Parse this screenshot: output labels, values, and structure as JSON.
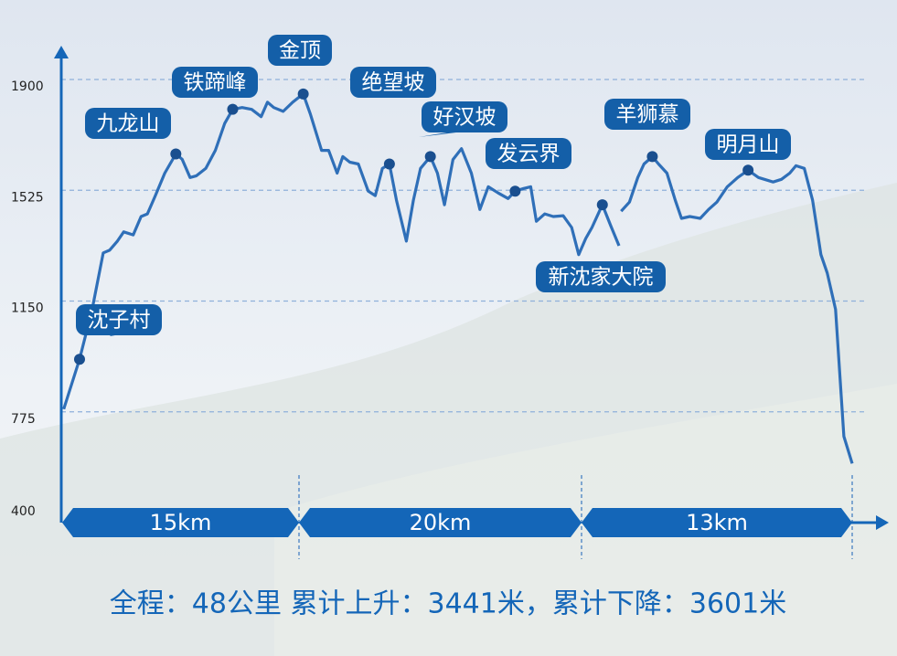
{
  "chart_data": {
    "type": "line",
    "color": "#2f6fb8",
    "ylim": [
      400,
      1900
    ],
    "yticks": [
      400,
      775,
      1150,
      1525,
      1900
    ],
    "grid": true,
    "x": [
      0.1,
      1.1,
      1.9,
      2.6,
      3.0,
      3.5,
      3.9,
      4.5,
      5.0,
      5.4,
      5.9,
      6.5,
      7.2,
      7.6,
      8.1,
      8.5,
      9.1,
      9.7,
      10.3,
      10.8,
      11.4,
      12.0,
      12.6,
      13.0,
      13.4,
      14.0,
      14.6,
      15.3,
      15.8,
      16.6,
      17.1,
      17.7,
      18.1,
      18.6,
      19.2,
      19.9,
      20.4,
      20.9,
      21.4,
      21.9,
      22.6,
      23.1,
      23.6,
      24.3,
      24.8,
      25.3,
      25.9,
      26.5,
      27.2,
      27.8,
      28.4,
      29.1,
      29.8,
      30.3,
      30.9,
      31.4,
      31.8,
      32.4,
      33.0,
      33.7,
      34.3,
      34.8,
      35.2,
      35.5,
      36.0,
      36.4,
      36.8,
      36.85,
      36.9,
      37.3,
      37.7,
      38.0,
      38.4,
      38.7,
      39.1,
      39.5,
      39.8,
      40.2,
      40.7,
      41.1,
      41.5,
      42.0,
      42.5,
      43.0,
      43.5,
      44.2,
      44.6,
      45.0,
      45.3,
      45.7,
      46.1,
      46.5,
      46.8,
      47.2,
      47.6,
      48.0
    ],
    "values": [
      784,
      953,
      1122,
      1313,
      1322,
      1353,
      1384,
      1374,
      1436,
      1445,
      1507,
      1583,
      1648,
      1630,
      1568,
      1574,
      1599,
      1660,
      1752,
      1799,
      1805,
      1799,
      1774,
      1823,
      1805,
      1792,
      1823,
      1851,
      1783,
      1660,
      1660,
      1583,
      1639,
      1620,
      1614,
      1522,
      1507,
      1599,
      1614,
      1491,
      1353,
      1491,
      1599,
      1639,
      1583,
      1476,
      1629,
      1666,
      1583,
      1460,
      1537,
      1516,
      1497,
      1522,
      1531,
      1537,
      1420,
      1445,
      1436,
      1439,
      1399,
      1307,
      1362,
      1399,
      1476,
      1405,
      1337,
      null,
      1454,
      1485,
      1568,
      1614,
      1639,
      1614,
      1583,
      1491,
      1430,
      1436,
      1430,
      1460,
      1485,
      1537,
      1568,
      1593,
      1568,
      1553,
      1562,
      1583,
      1608,
      1599,
      1491,
      1307,
      1245,
      1122,
      692,
      600
    ],
    "waypoints": [
      {
        "label": "沈子村",
        "x": 1.1,
        "y": 953
      },
      {
        "label": "九龙山",
        "x": 7.2,
        "y": 1648
      },
      {
        "label": "铁蹄峰",
        "x": 10.8,
        "y": 1799
      },
      {
        "label": "金顶",
        "x": 15.3,
        "y": 1851
      },
      {
        "label": "绝望坡",
        "x": 21.4,
        "y": 1614
      },
      {
        "label": "好汉坡",
        "x": 24.3,
        "y": 1639
      },
      {
        "label": "发云界",
        "x": 30.3,
        "y": 1522
      },
      {
        "label": "新沈家大院",
        "x": 36.0,
        "y": 1476
      },
      {
        "label": "羊狮慕",
        "x": 38.4,
        "y": 1639
      },
      {
        "label": "明月山",
        "x": 43.0,
        "y": 1593
      }
    ],
    "segments": [
      {
        "value": 15,
        "label": "15km"
      },
      {
        "value": 20,
        "label": "20km"
      },
      {
        "value": 13,
        "label": "13km"
      }
    ],
    "summary": "全程：48公里  累计上升：3441米，累计下降：3601米"
  }
}
